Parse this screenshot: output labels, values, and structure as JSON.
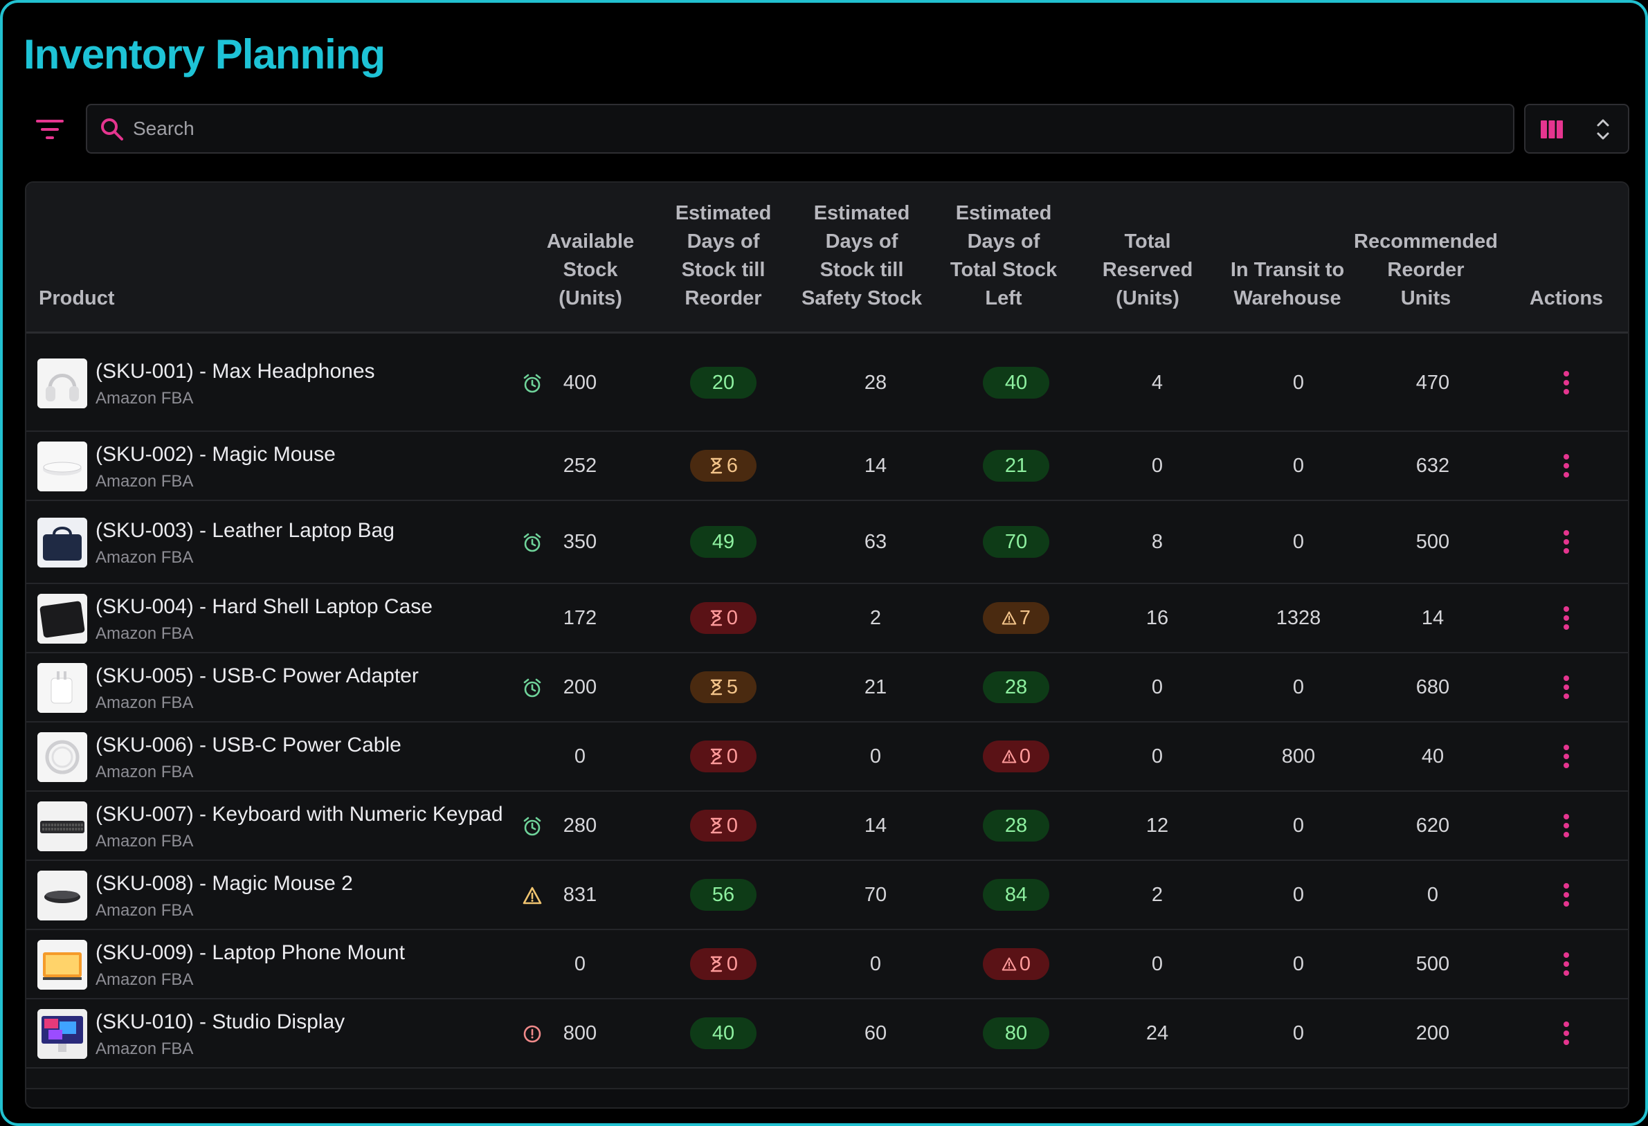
{
  "app": {
    "title": "Inventory Planning"
  },
  "toolbar": {
    "search_placeholder": "Search",
    "search_value": "",
    "filter_icon": "filter-icon",
    "columns_icon": "columns-icon",
    "sort_icon": "chevron-updown-icon"
  },
  "colors": {
    "accent": "#1ec3d6",
    "pink": "#e5358f",
    "green_pill": "#0e3b17",
    "orange_pill": "#4a2a10",
    "red_pill": "#5a1216"
  },
  "table": {
    "headers": {
      "product": "Product",
      "available_stock": [
        "Available",
        "Stock",
        "(Units)"
      ],
      "days_reorder": [
        "Estimated",
        "Days of",
        "Stock till",
        "Reorder"
      ],
      "days_safety": [
        "Estimated",
        "Days of",
        "Stock till",
        "Safety Stock"
      ],
      "days_total": [
        "Estimated",
        "Days of",
        "Total Stock",
        "Left"
      ],
      "total_reserved": [
        "Total",
        "Reserved",
        "(Units)"
      ],
      "in_transit": [
        "In Transit to",
        "Warehouse"
      ],
      "recommended": [
        "Recommended",
        "Reorder",
        "Units"
      ],
      "actions": "Actions"
    },
    "rows": [
      {
        "name": "(SKU-001) - Max Headphones",
        "channel": "Amazon FBA",
        "stock_icon": "alarm",
        "stock": "400",
        "reorder": "20",
        "reorder_status": "green",
        "safety": "28",
        "total": "40",
        "total_status": "green",
        "reserved": "4",
        "transit": "0",
        "recommended": "470"
      },
      {
        "name": "(SKU-002) - Magic Mouse",
        "channel": "Amazon FBA",
        "stock_icon": "",
        "stock": "252",
        "reorder": "6",
        "reorder_status": "orange",
        "safety": "14",
        "total": "21",
        "total_status": "green",
        "reserved": "0",
        "transit": "0",
        "recommended": "632"
      },
      {
        "name": "(SKU-003) - Leather Laptop Bag",
        "channel": "Amazon FBA",
        "stock_icon": "alarm",
        "stock": "350",
        "reorder": "49",
        "reorder_status": "green",
        "safety": "63",
        "total": "70",
        "total_status": "green",
        "reserved": "8",
        "transit": "0",
        "recommended": "500"
      },
      {
        "name": "(SKU-004) - Hard Shell Laptop Case",
        "channel": "Amazon FBA",
        "stock_icon": "",
        "stock": "172",
        "reorder": "0",
        "reorder_status": "red",
        "safety": "2",
        "total": "7",
        "total_status": "orange",
        "reserved": "16",
        "transit": "1328",
        "recommended": "14"
      },
      {
        "name": "(SKU-005) - USB-C Power Adapter",
        "channel": "Amazon FBA",
        "stock_icon": "alarm",
        "stock": "200",
        "reorder": "5",
        "reorder_status": "orange",
        "safety": "21",
        "total": "28",
        "total_status": "green",
        "reserved": "0",
        "transit": "0",
        "recommended": "680"
      },
      {
        "name": "(SKU-006) - USB-C Power Cable",
        "channel": "Amazon FBA",
        "stock_icon": "",
        "stock": "0",
        "reorder": "0",
        "reorder_status": "red",
        "safety": "0",
        "total": "0",
        "total_status": "red",
        "reserved": "0",
        "transit": "800",
        "recommended": "40"
      },
      {
        "name": "(SKU-007) - Keyboard with Numeric Keypad",
        "channel": "Amazon FBA",
        "stock_icon": "alarm",
        "stock": "280",
        "reorder": "0",
        "reorder_status": "red",
        "safety": "14",
        "total": "28",
        "total_status": "green",
        "reserved": "12",
        "transit": "0",
        "recommended": "620"
      },
      {
        "name": "(SKU-008) - Magic Mouse 2",
        "channel": "Amazon FBA",
        "stock_icon": "warning",
        "stock": "831",
        "reorder": "56",
        "reorder_status": "green",
        "safety": "70",
        "total": "84",
        "total_status": "green",
        "reserved": "2",
        "transit": "0",
        "recommended": "0"
      },
      {
        "name": "(SKU-009) - Laptop Phone Mount",
        "channel": "Amazon FBA",
        "stock_icon": "",
        "stock": "0",
        "reorder": "0",
        "reorder_status": "red",
        "safety": "0",
        "total": "0",
        "total_status": "red",
        "reserved": "0",
        "transit": "0",
        "recommended": "500"
      },
      {
        "name": "(SKU-010) - Studio Display",
        "channel": "Amazon FBA",
        "stock_icon": "info",
        "stock": "800",
        "reorder": "40",
        "reorder_status": "green",
        "safety": "60",
        "total": "80",
        "total_status": "green",
        "reserved": "24",
        "transit": "0",
        "recommended": "200"
      }
    ]
  }
}
